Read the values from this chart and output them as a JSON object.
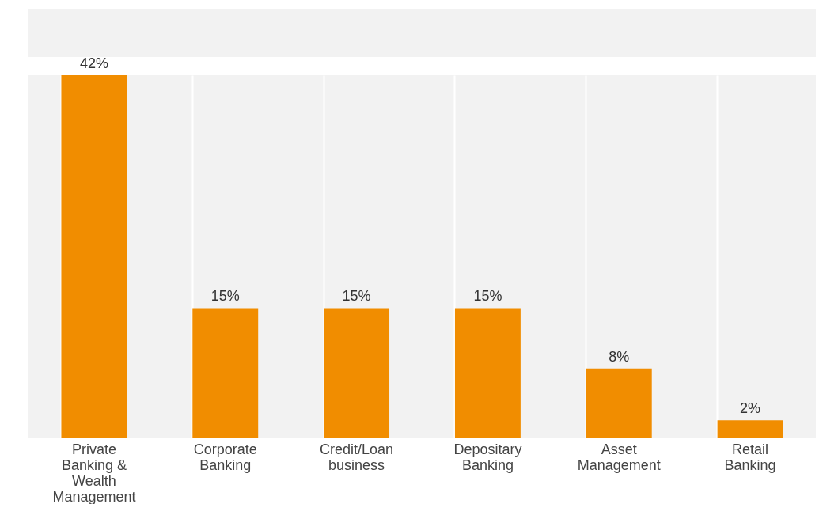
{
  "chart_data": {
    "type": "bar",
    "categories": [
      "Private Banking & Wealth Management",
      "Corporate Banking",
      "Credit/Loan business",
      "Depositary Banking",
      "Asset Management",
      "Retail Banking"
    ],
    "values": [
      42,
      15,
      15,
      15,
      8,
      2
    ],
    "value_labels": [
      "42%",
      "15%",
      "15%",
      "15%",
      "8%",
      "2%"
    ],
    "color": "#f18d00",
    "grid": "x"
  }
}
